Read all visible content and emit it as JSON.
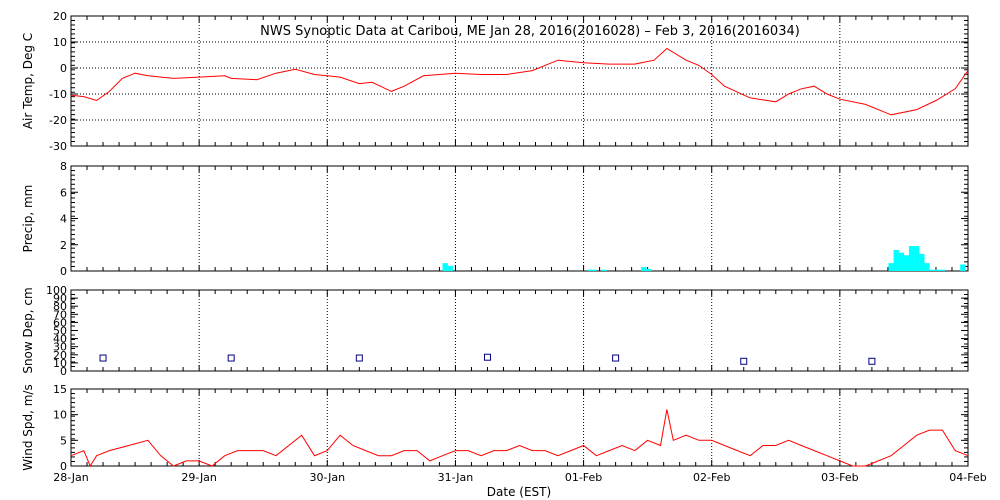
{
  "title": "NWS Synoptic Data at Caribou, ME   Jan 28, 2016(2016028) – Feb  3, 2016(2016034)",
  "xlabel": "Date (EST)",
  "x_ticks": [
    "28-Jan",
    "29-Jan",
    "30-Jan",
    "31-Jan",
    "01-Feb",
    "02-Feb",
    "03-Feb",
    "04-Feb"
  ],
  "colors": {
    "temp": "#ff0000",
    "wind": "#ff0000",
    "precip": "#00ffff",
    "snow": "#000080",
    "grid": "#000000"
  },
  "chart_data": [
    {
      "type": "line",
      "ylabel": "Air Temp, Deg C",
      "ylim": [
        -30,
        20
      ],
      "yticks": [
        20,
        10,
        0,
        -10,
        -20,
        -30
      ],
      "grid": true,
      "x_unit": "days since 28-Jan 00:00 EST",
      "x": [
        0,
        0.1,
        0.2,
        0.3,
        0.4,
        0.5,
        0.6,
        0.8,
        1.0,
        1.2,
        1.25,
        1.45,
        1.6,
        1.75,
        1.9,
        2.0,
        2.1,
        2.25,
        2.35,
        2.5,
        2.6,
        2.75,
        3.0,
        3.2,
        3.4,
        3.6,
        3.8,
        4.0,
        4.2,
        4.4,
        4.55,
        4.65,
        4.8,
        4.9,
        5.0,
        5.1,
        5.3,
        5.5,
        5.6,
        5.7,
        5.8,
        5.9,
        6.0,
        6.2,
        6.4,
        6.6,
        6.75,
        6.9,
        7.0
      ],
      "series": [
        {
          "name": "Air Temp",
          "values": [
            -10.5,
            -11,
            -12.5,
            -9,
            -4,
            -2,
            -3,
            -4,
            -3.5,
            -3,
            -4,
            -4.5,
            -2,
            -0.5,
            -2.5,
            -3,
            -3.5,
            -6,
            -5.5,
            -9,
            -7,
            -3,
            -2,
            -2.5,
            -2.5,
            -1,
            3,
            2,
            1.5,
            1.5,
            3,
            7.5,
            3,
            1,
            -2.5,
            -7,
            -11.5,
            -13,
            -10,
            -8,
            -7,
            -10,
            -12,
            -14,
            -18,
            -16,
            -12.5,
            -8,
            -1
          ]
        }
      ]
    },
    {
      "type": "bar",
      "ylabel": "Precip, mm",
      "ylim": [
        0,
        8
      ],
      "yticks": [
        0,
        2,
        4,
        6,
        8
      ],
      "x_unit": "days since 28-Jan 00:00 EST",
      "x": [
        2.92,
        2.96,
        4.05,
        4.08,
        4.16,
        4.47,
        4.51,
        6.4,
        6.44,
        6.48,
        6.52,
        6.56,
        6.6,
        6.64,
        6.68,
        6.72,
        6.76,
        6.8,
        6.96
      ],
      "series": [
        {
          "name": "Precip",
          "values": [
            0.6,
            0.4,
            0.1,
            0.1,
            0.1,
            0.3,
            0.15,
            0.6,
            1.6,
            1.4,
            1.2,
            1.9,
            1.9,
            1.3,
            0.6,
            0.1,
            0.1,
            0.1,
            0.5
          ]
        }
      ]
    },
    {
      "type": "scatter",
      "ylabel": "Snow Dep, cm",
      "ylim": [
        0,
        100
      ],
      "yticks": [
        0,
        10,
        20,
        30,
        40,
        50,
        60,
        70,
        80,
        90,
        100
      ],
      "x_unit": "days since 28-Jan 00:00 EST",
      "x": [
        0.25,
        1.25,
        2.25,
        3.25,
        4.25,
        5.25,
        6.25
      ],
      "series": [
        {
          "name": "Snow Depth",
          "values": [
            16,
            16,
            16,
            17,
            16,
            12,
            12
          ]
        }
      ]
    },
    {
      "type": "line",
      "ylabel": "Wind Spd, m/s",
      "ylim": [
        0,
        15
      ],
      "yticks": [
        0,
        5,
        10,
        15
      ],
      "x_unit": "days since 28-Jan 00:00 EST",
      "x": [
        0,
        0.1,
        0.15,
        0.2,
        0.3,
        0.45,
        0.6,
        0.7,
        0.8,
        0.9,
        1.0,
        1.1,
        1.2,
        1.3,
        1.4,
        1.5,
        1.6,
        1.8,
        1.9,
        2.0,
        2.1,
        2.2,
        2.3,
        2.4,
        2.5,
        2.6,
        2.7,
        2.8,
        2.9,
        3.0,
        3.1,
        3.2,
        3.3,
        3.4,
        3.5,
        3.6,
        3.7,
        3.8,
        3.9,
        4.0,
        4.1,
        4.2,
        4.3,
        4.4,
        4.5,
        4.6,
        4.65,
        4.7,
        4.8,
        4.9,
        5.0,
        5.1,
        5.2,
        5.3,
        5.4,
        5.5,
        5.6,
        5.7,
        5.8,
        5.9,
        6.0,
        6.1,
        6.2,
        6.3,
        6.4,
        6.5,
        6.6,
        6.7,
        6.8,
        6.9,
        7.0
      ],
      "series": [
        {
          "name": "Wind Speed",
          "values": [
            2,
            3,
            0,
            2,
            3,
            4,
            5,
            2,
            0,
            1,
            1,
            0,
            2,
            3,
            3,
            3,
            2,
            6,
            2,
            3,
            6,
            4,
            3,
            2,
            2,
            3,
            3,
            1,
            2,
            3,
            3,
            2,
            3,
            3,
            4,
            3,
            3,
            2,
            3,
            4,
            2,
            3,
            4,
            3,
            5,
            4,
            11,
            5,
            6,
            5,
            5,
            4,
            3,
            2,
            4,
            4,
            5,
            4,
            3,
            2,
            1,
            0,
            0,
            1,
            2,
            4,
            6,
            7,
            7,
            3,
            2
          ]
        }
      ]
    }
  ]
}
